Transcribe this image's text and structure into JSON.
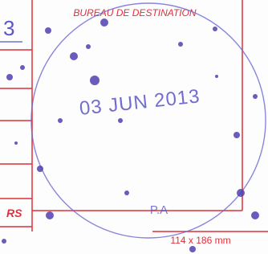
{
  "form": {
    "field_top": "3",
    "destination_label": "BUREAU DE DESTINATION",
    "side_label": "RS",
    "size_note": "114 x 186 mm"
  },
  "stamp": {
    "date": "03 JUN 2013",
    "office": "P.A"
  }
}
